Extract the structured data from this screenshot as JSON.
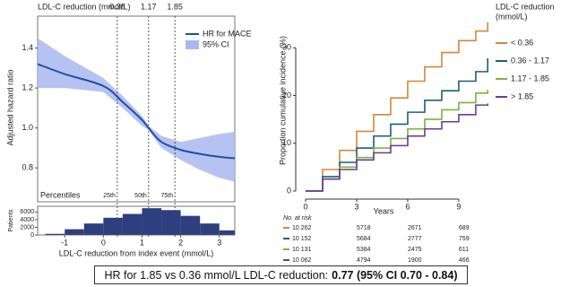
{
  "chart_data": [
    {
      "type": "spline",
      "ylabel": "Adjusted hazard ratio",
      "x": [
        -1.7,
        -1,
        0,
        0.5,
        1,
        1.17,
        1.5,
        2,
        2.5,
        3,
        3.4
      ],
      "series": [
        {
          "name": "HR for MACE",
          "color": "#1f4fa8",
          "values": [
            1.32,
            1.27,
            1.21,
            1.13,
            1.04,
            1.0,
            0.93,
            0.89,
            0.87,
            0.855,
            0.848
          ]
        }
      ],
      "band": {
        "name": "95% CI",
        "color": "#a9b9f0",
        "lower": [
          1.2,
          1.2,
          1.18,
          1.1,
          1.01,
          0.99,
          0.9,
          0.84,
          0.79,
          0.75,
          0.73
        ],
        "upper": [
          1.45,
          1.36,
          1.25,
          1.16,
          1.06,
          1.01,
          0.96,
          0.93,
          0.95,
          0.97,
          0.98
        ]
      },
      "reference_label": "LDL-C reduction (mmol/L)",
      "reference_lines": [
        0.36,
        1.17,
        1.85
      ],
      "percentiles_label": "Percentiles",
      "percentile_labels": [
        "25th",
        "50th",
        "75th"
      ],
      "xlim": [
        -1.7,
        3.4
      ],
      "ylim": [
        0.63,
        1.56
      ],
      "yticks": [
        0.8,
        {
          "value": 1.0,
          "label": "1.0"
        },
        1.2,
        1.4
      ],
      "legend": "top-right"
    },
    {
      "type": "histogram",
      "ylabel": "Patients",
      "xlabel": "LDL-C reduction from index event (mmol/L)",
      "bins": [
        -1.5,
        -1,
        -0.5,
        0,
        0.5,
        1,
        1.5,
        2,
        2.5,
        3,
        3.5,
        4
      ],
      "counts": [
        300,
        1500,
        3000,
        4500,
        5500,
        7000,
        6500,
        5000,
        3000,
        1200,
        300
      ],
      "color": "#2e3f7f",
      "xlim": [
        -1.7,
        3.4
      ],
      "ylim": [
        0,
        7500
      ],
      "xticks": [
        -1,
        0,
        1,
        2,
        3
      ],
      "yticks": [
        0,
        2000,
        4000,
        6000
      ]
    },
    {
      "type": "step",
      "xlabel": "Years",
      "ylabel": "Proportion cumulative incidence (%)",
      "legend_title": [
        "LDL-C reduction",
        "(mmol/L)"
      ],
      "x": [
        0,
        1,
        2,
        3,
        4,
        5,
        6,
        7,
        8,
        9,
        10,
        10.7
      ],
      "series": [
        {
          "name": "< 0.36",
          "color": "#d4873a",
          "values": [
            0,
            4.5,
            8.5,
            12.5,
            16,
            19.5,
            23,
            26,
            29,
            31.5,
            33.5,
            35.3
          ]
        },
        {
          "name": "0.36 - 1.17",
          "color": "#1d5f7a",
          "values": [
            0,
            3,
            6,
            9,
            11.5,
            14,
            16.5,
            19,
            21,
            23,
            25,
            27.8
          ]
        },
        {
          "name": "1.17 - 1.85",
          "color": "#7cb342",
          "values": [
            0,
            2.5,
            5,
            7,
            9,
            11,
            13,
            15,
            17,
            18.5,
            20.5,
            21.2
          ]
        },
        {
          "name": "> 1.85",
          "color": "#6a3d8f",
          "values": [
            0,
            2.5,
            4.5,
            6.5,
            8,
            9.5,
            11.5,
            13,
            14.5,
            16,
            18,
            18.3
          ]
        }
      ],
      "xlim": [
        -0.58,
        10.9
      ],
      "ylim": [
        -1.7,
        38.5
      ],
      "xticks": [
        0,
        3,
        6,
        9
      ],
      "yticks": [
        0,
        10,
        20,
        30
      ],
      "legend": "right",
      "risk_table": {
        "title": "No. at risk",
        "rows": [
          [
            "10 262",
            "5718",
            "2671",
            "689"
          ],
          [
            "10 152",
            "5684",
            "2777",
            "759"
          ],
          [
            "10 131",
            "5384",
            "2475",
            "611"
          ],
          [
            "10 062",
            "4794",
            "1900",
            "466"
          ]
        ]
      }
    }
  ],
  "footer": {
    "text": "HR for 1.85 vs 0.36 mmol/L LDL-C reduction:",
    "result": "0.77 (95% CI 0.70 - 0.84)"
  }
}
